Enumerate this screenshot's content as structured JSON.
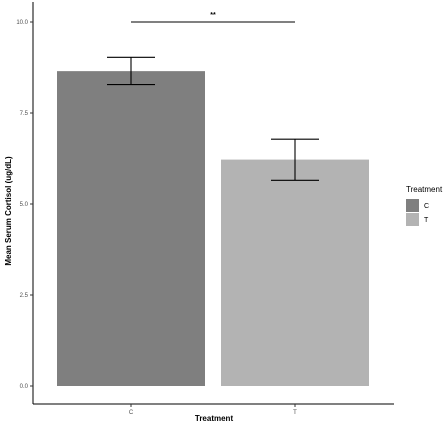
{
  "chart_data": {
    "type": "bar",
    "title": "",
    "xlabel": "Treatment",
    "ylabel": "Mean Serum Cortisol (ug/dL)",
    "categories": [
      "C",
      "T"
    ],
    "values": [
      8.65,
      6.22
    ],
    "error_low": [
      8.28,
      5.65
    ],
    "error_high": [
      9.03,
      6.78
    ],
    "ylim": [
      0,
      10.5
    ],
    "yticks": [
      0.0,
      2.5,
      5.0,
      7.5,
      10.0
    ],
    "ytick_labels": [
      "0.0",
      "2.5",
      "5.0",
      "7.5",
      "10.0"
    ],
    "colors": [
      "#7f7f7f",
      "#b3b3b3"
    ],
    "grid": false,
    "legend": {
      "title": "Treatment",
      "position": "right",
      "entries": [
        "C",
        "T"
      ]
    },
    "significance": {
      "label": "**",
      "from": "C",
      "to": "T",
      "y": 10.0
    }
  }
}
